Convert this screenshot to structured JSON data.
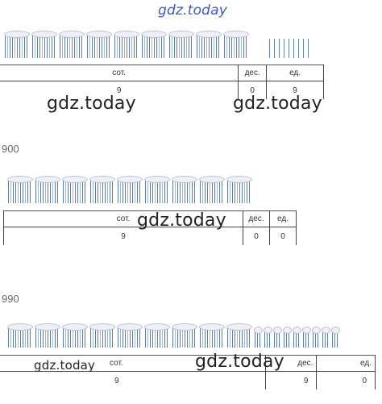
{
  "watermarks": {
    "top": "gdz.today",
    "s1_left": "gdz.today",
    "s1_right": "gdz.today",
    "s2": "gdz.today",
    "s3_left": "gdz.today",
    "s3_mid": "gdz.today"
  },
  "sections": [
    {
      "number": "",
      "hundreds_bundles": 9,
      "tens_bundles": 0,
      "single_sticks": 9,
      "headers": {
        "hundreds": "сот.",
        "tens": "дес.",
        "units": "ед."
      },
      "values": {
        "hundreds": "9",
        "tens": "0",
        "units": "9"
      }
    },
    {
      "number": "900",
      "hundreds_bundles": 9,
      "tens_bundles": 0,
      "single_sticks": 0,
      "headers": {
        "hundreds": "сот.",
        "tens": "дес.",
        "units": "ед."
      },
      "values": {
        "hundreds": "9",
        "tens": "0",
        "units": "0"
      }
    },
    {
      "number": "990",
      "hundreds_bundles": 9,
      "tens_bundles": 9,
      "single_sticks": 0,
      "headers": {
        "hundreds": "сот.",
        "tens": "дес.",
        "units": "ед."
      },
      "values": {
        "hundreds": "9",
        "tens": "9",
        "units": "0"
      }
    }
  ]
}
